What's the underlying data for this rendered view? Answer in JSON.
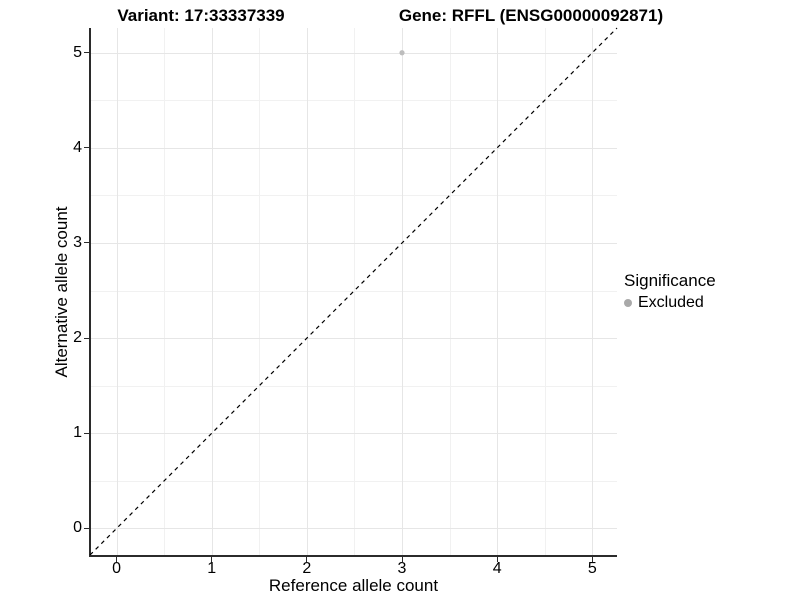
{
  "titles": {
    "variant": "Variant: 17:33337339",
    "gene": "Gene: RFFL (ENSG00000092871)"
  },
  "chart_data": {
    "type": "scatter",
    "title_left": "Variant: 17:33337339",
    "title_right": "Gene: RFFL (ENSG00000092871)",
    "xlabel": "Reference allele count",
    "ylabel": "Alternative allele count",
    "xlim": [
      -0.28,
      5.26
    ],
    "ylim": [
      -0.28,
      5.26
    ],
    "x_ticks": [
      0,
      1,
      2,
      3,
      4,
      5
    ],
    "y_ticks": [
      0,
      1,
      2,
      3,
      4,
      5
    ],
    "minor_step": 0.5,
    "grid": true,
    "identity_line": {
      "style": "dashed",
      "color": "#000000",
      "comment": "y = x reference line"
    },
    "series": [
      {
        "name": "Excluded",
        "color": "#bdbdbd",
        "points": [
          {
            "x": 3,
            "y": 5
          }
        ]
      }
    ],
    "legend": {
      "title": "Significance",
      "position": "right",
      "items": [
        {
          "label": "Excluded",
          "color": "#a9a9a9"
        }
      ]
    }
  },
  "colors": {
    "axis": "#2b2b2b",
    "grid_major": "#e6e6e6",
    "grid_minor": "#f1f1f1",
    "text": "#000000",
    "background": "#ffffff"
  }
}
